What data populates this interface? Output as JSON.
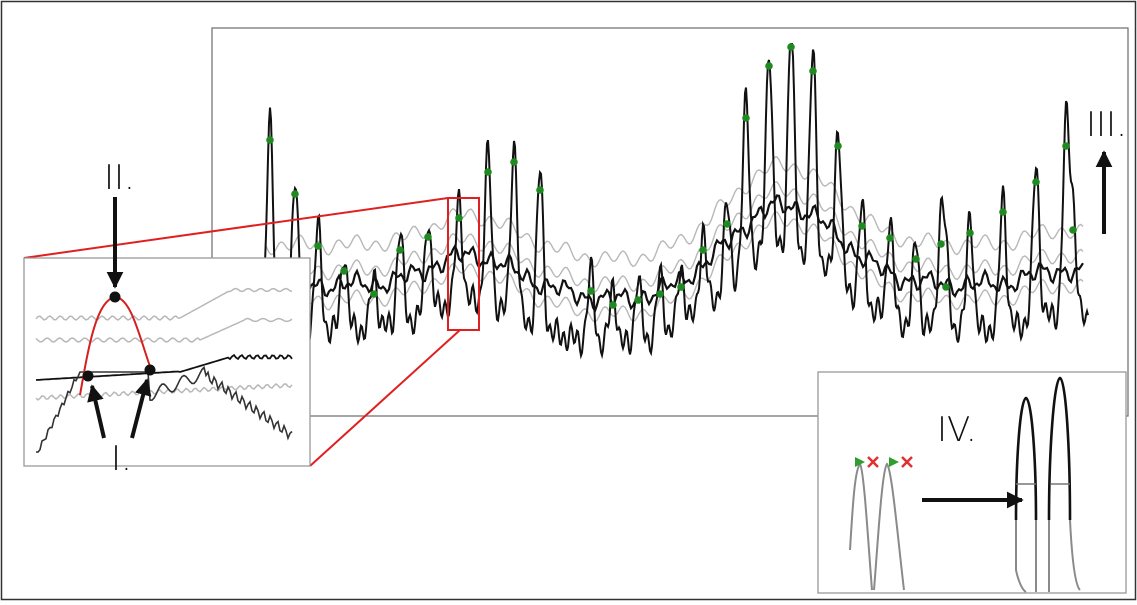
{
  "figure": {
    "labels": {
      "step_1": "I.",
      "step_2": "II.",
      "step_3": "III.",
      "step_4": "IV."
    },
    "colors": {
      "signal": "#111111",
      "filtered_traces": "#b8b8b8",
      "mean_trace": "#111111",
      "peak_marker": "#1f8a1f",
      "zoom_box": "#e02020",
      "zoom_peak": "#d42020",
      "onset_marker": "#2e9e2e",
      "offset_marker": "#e03030"
    },
    "icons": {
      "peak_marker": "green-dot-icon",
      "arrow": "black-arrow-icon",
      "onset_marker": "green-triangle-icon",
      "offset_marker": "red-x-icon"
    }
  }
}
